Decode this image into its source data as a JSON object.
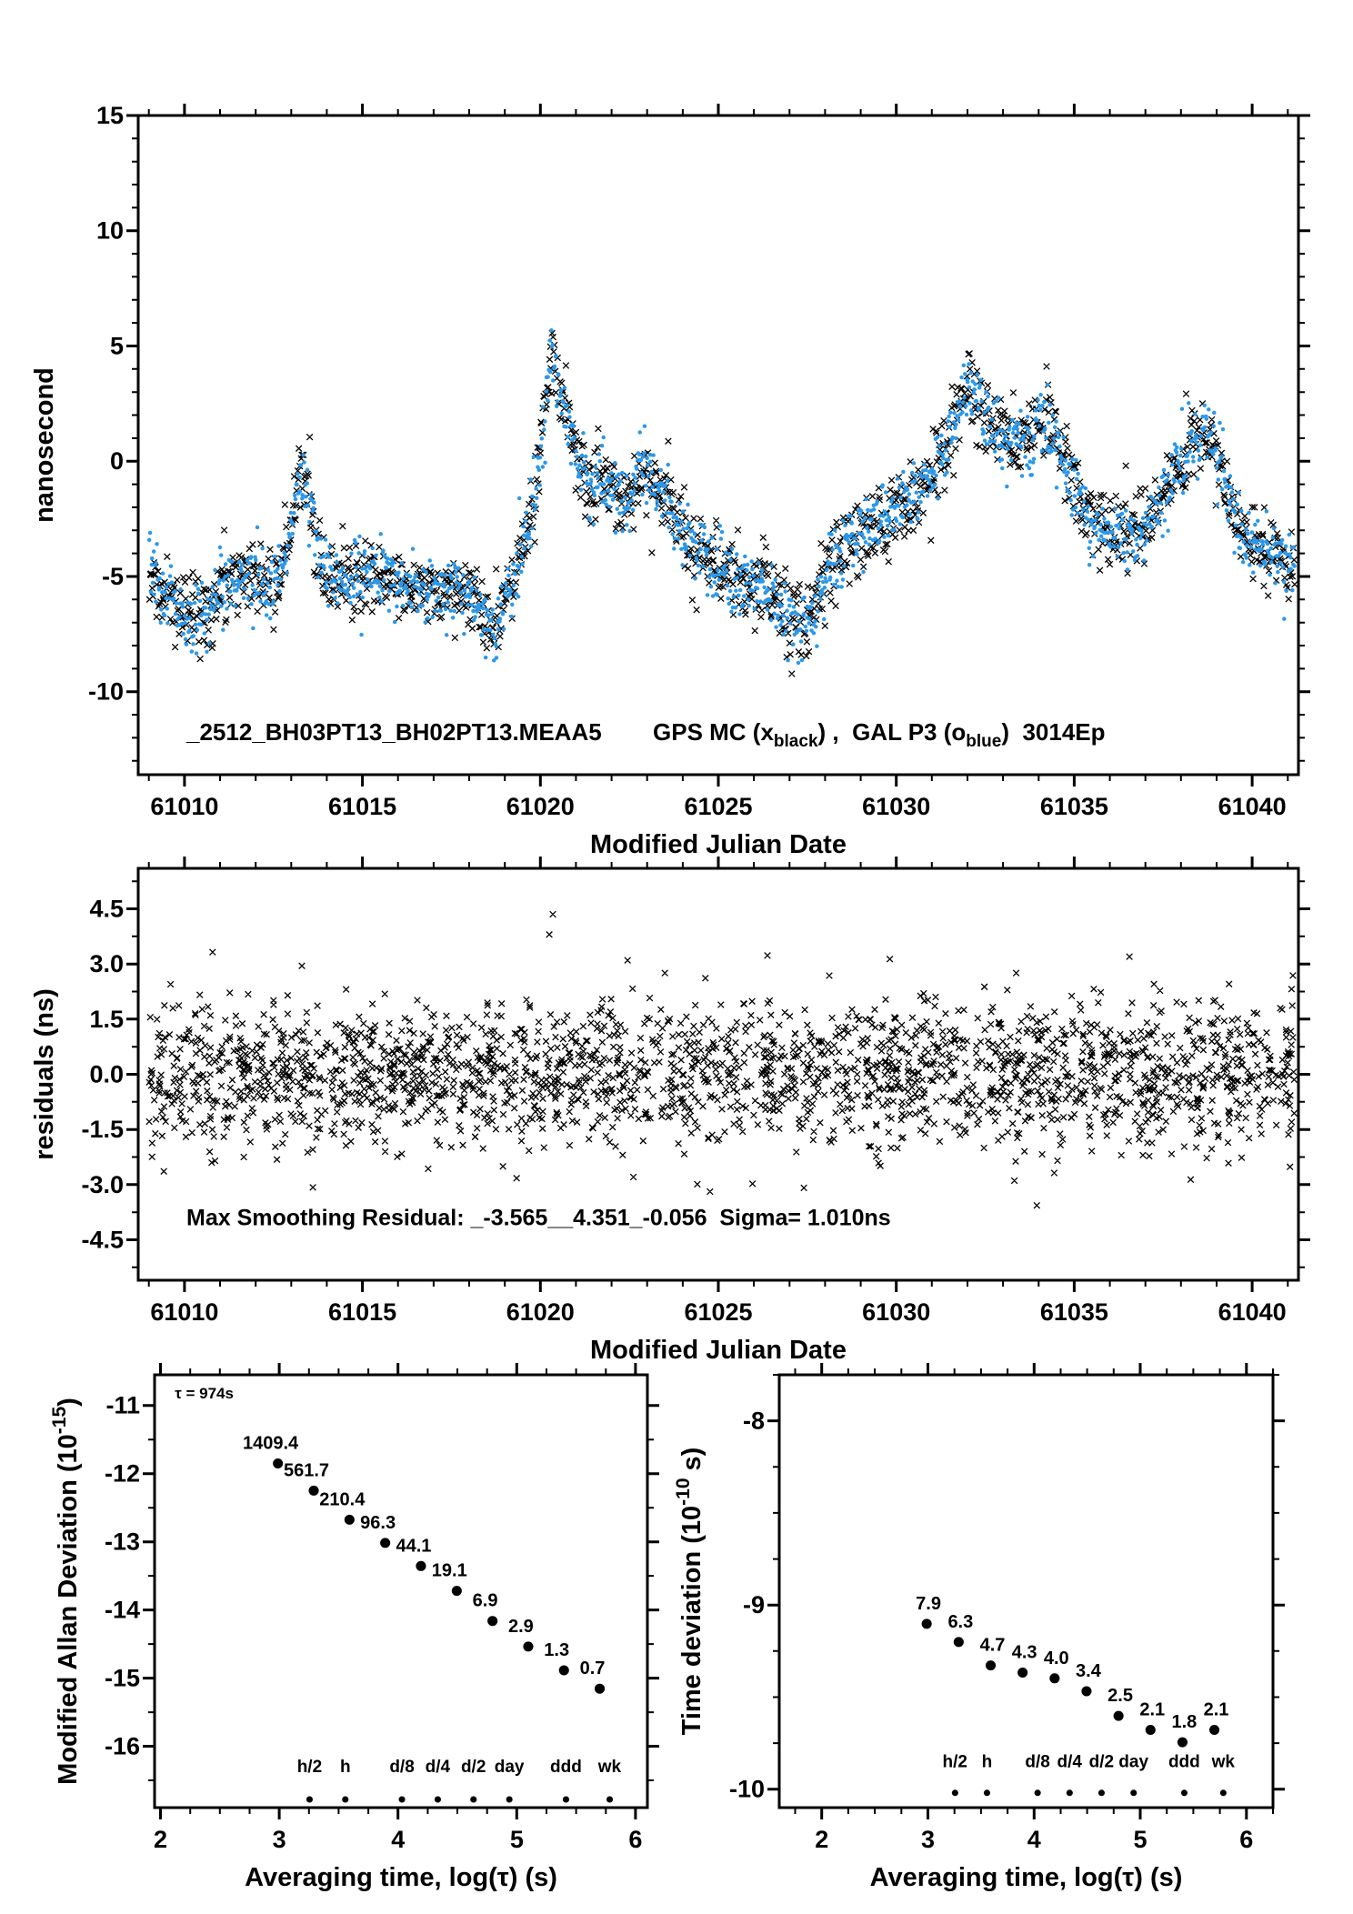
{
  "colors": {
    "black": "#000000",
    "blue": "#2b98ea",
    "red": "#e60000",
    "bg": "#ffffff"
  },
  "chart_data": [
    {
      "id": "gps-gal-scatter",
      "type": "scatter",
      "xlabel": "Modified Julian Date",
      "ylabel": "nanosecond",
      "xlim": [
        61008.7,
        61041.3
      ],
      "ylim": [
        -13.6,
        15
      ],
      "xticks": [
        61010,
        61015,
        61020,
        61025,
        61030,
        61035,
        61040
      ],
      "xtick_labels": [
        "61010",
        "61015",
        "61020",
        "61025",
        "61030",
        "61035",
        "61040"
      ],
      "yticks": [
        -10,
        -5,
        0,
        5,
        10,
        15
      ],
      "ytick_labels": [
        "-10",
        "-5",
        "0",
        "5",
        "10",
        "15"
      ],
      "x_minor_step": 1,
      "y_minor_step": 1,
      "annotation": {
        "file_id": "_2512_BH03PT13_BH02PT13.MEAA5",
        "series1_pre": "GPS MC (x",
        "series1_sub": "black",
        "series1_post": ") ,  ",
        "series2_pre": "GAL P3 (o",
        "series2_sub": "blue",
        "series2_post": ")  ",
        "epochs": "3014Ep"
      },
      "series": [
        {
          "name": "GPS MC",
          "marker": "x",
          "color": "#000000",
          "noise_sigma": 0.85,
          "n_points": 1600,
          "seed": 4001
        },
        {
          "name": "GAL P3",
          "marker": "dot",
          "color": "#2b98ea",
          "noise_sigma": 0.75,
          "n_points": 1600,
          "seed": 7003
        }
      ],
      "x_range_data": [
        61009.0,
        61041.2
      ],
      "trend": [
        [
          61009.0,
          -4.8
        ],
        [
          61009.4,
          -5.6
        ],
        [
          61009.8,
          -6.3
        ],
        [
          61010.2,
          -6.8
        ],
        [
          61010.6,
          -6.6
        ],
        [
          61011.0,
          -5.6
        ],
        [
          61011.4,
          -5.0
        ],
        [
          61011.8,
          -5.0
        ],
        [
          61012.2,
          -5.3
        ],
        [
          61012.6,
          -5.1
        ],
        [
          61012.9,
          -4.3
        ],
        [
          61013.1,
          -1.8
        ],
        [
          61013.3,
          -0.4
        ],
        [
          61013.5,
          -1.2
        ],
        [
          61013.7,
          -3.3
        ],
        [
          61014.0,
          -4.9
        ],
        [
          61014.4,
          -5.4
        ],
        [
          61014.8,
          -5.2
        ],
        [
          61015.2,
          -5.0
        ],
        [
          61015.6,
          -4.9
        ],
        [
          61016.0,
          -5.3
        ],
        [
          61016.4,
          -5.5
        ],
        [
          61016.8,
          -5.6
        ],
        [
          61017.2,
          -5.7
        ],
        [
          61017.6,
          -5.5
        ],
        [
          61018.0,
          -5.9
        ],
        [
          61018.4,
          -7.0
        ],
        [
          61018.6,
          -7.4
        ],
        [
          61018.9,
          -6.6
        ],
        [
          61019.2,
          -5.4
        ],
        [
          61019.5,
          -3.8
        ],
        [
          61019.8,
          -1.6
        ],
        [
          61020.1,
          1.5
        ],
        [
          61020.3,
          4.3
        ],
        [
          61020.5,
          3.4
        ],
        [
          61020.7,
          2.2
        ],
        [
          61020.9,
          1.0
        ],
        [
          61021.1,
          0.0
        ],
        [
          61021.4,
          -0.9
        ],
        [
          61021.7,
          -0.6
        ],
        [
          61022.0,
          -1.1
        ],
        [
          61022.3,
          -1.6
        ],
        [
          61022.6,
          -1.2
        ],
        [
          61022.9,
          -0.4
        ],
        [
          61023.2,
          -0.9
        ],
        [
          61023.5,
          -1.6
        ],
        [
          61023.8,
          -2.3
        ],
        [
          61024.1,
          -3.1
        ],
        [
          61024.5,
          -4.0
        ],
        [
          61024.9,
          -4.4
        ],
        [
          61025.3,
          -5.0
        ],
        [
          61025.7,
          -5.6
        ],
        [
          61026.1,
          -5.2
        ],
        [
          61026.5,
          -5.9
        ],
        [
          61026.9,
          -6.8
        ],
        [
          61027.2,
          -7.4
        ],
        [
          61027.5,
          -6.9
        ],
        [
          61027.8,
          -5.8
        ],
        [
          61028.1,
          -4.7
        ],
        [
          61028.5,
          -3.7
        ],
        [
          61028.9,
          -3.1
        ],
        [
          61029.3,
          -2.8
        ],
        [
          61029.7,
          -2.4
        ],
        [
          61030.1,
          -2.0
        ],
        [
          61030.5,
          -1.6
        ],
        [
          61030.9,
          -0.9
        ],
        [
          61031.3,
          0.5
        ],
        [
          61031.7,
          2.0
        ],
        [
          61032.0,
          3.2
        ],
        [
          61032.3,
          2.7
        ],
        [
          61032.6,
          1.8
        ],
        [
          61032.9,
          1.3
        ],
        [
          61033.3,
          1.1
        ],
        [
          61033.7,
          1.0
        ],
        [
          61034.0,
          1.7
        ],
        [
          61034.3,
          1.6
        ],
        [
          61034.6,
          0.6
        ],
        [
          61034.9,
          -0.6
        ],
        [
          61035.2,
          -1.8
        ],
        [
          61035.5,
          -2.7
        ],
        [
          61035.9,
          -3.1
        ],
        [
          61036.3,
          -3.4
        ],
        [
          61036.7,
          -3.3
        ],
        [
          61037.1,
          -2.7
        ],
        [
          61037.5,
          -1.6
        ],
        [
          61037.9,
          -0.3
        ],
        [
          61038.3,
          0.9
        ],
        [
          61038.6,
          1.3
        ],
        [
          61038.9,
          0.7
        ],
        [
          61039.2,
          -0.8
        ],
        [
          61039.5,
          -2.6
        ],
        [
          61039.8,
          -3.4
        ],
        [
          61040.2,
          -3.6
        ],
        [
          61040.6,
          -3.9
        ],
        [
          61041.0,
          -4.6
        ],
        [
          61041.3,
          -4.8
        ]
      ]
    },
    {
      "id": "residuals",
      "type": "scatter",
      "xlabel": "Modified Julian Date",
      "ylabel": "residuals (ns)",
      "xlim": [
        61008.7,
        61041.3
      ],
      "ylim": [
        -5.6,
        5.6
      ],
      "xticks": [
        61010,
        61015,
        61020,
        61025,
        61030,
        61035,
        61040
      ],
      "xtick_labels": [
        "61010",
        "61015",
        "61020",
        "61025",
        "61030",
        "61035",
        "61040"
      ],
      "yticks": [
        -4.5,
        -3,
        -1.5,
        0,
        1.5,
        3,
        4.5
      ],
      "ytick_labels": [
        "-4.5",
        "-3.0",
        "-1.5",
        "0.0",
        "1.5",
        "3.0",
        "4.5"
      ],
      "x_minor_step": 1,
      "y_minor_step": 0.75,
      "annotation": "Max Smoothing Residual: _-3.565__4.351_-0.056  Sigma= 1.010ns",
      "sigma_ns": 1.01,
      "n_points": 2300,
      "seed": 9091,
      "x_range_data": [
        61009.0,
        61041.2
      ],
      "outliers": [
        [
          61020.35,
          4.351
        ],
        [
          61033.95,
          -3.565
        ],
        [
          61036.55,
          3.2
        ],
        [
          61020.25,
          3.8
        ],
        [
          61013.3,
          2.95
        ],
        [
          61022.45,
          3.1
        ]
      ]
    },
    {
      "id": "mdev",
      "type": "scatter",
      "xlabel": "Averaging time, log(τ) (s)",
      "ylabel_pre": "Modified Allan Deviation (10",
      "ylabel_sup": "-15",
      "ylabel_post": ")",
      "xlim": [
        1.95,
        6.1
      ],
      "ylim": [
        -16.9,
        -10.55
      ],
      "xticks": [
        2,
        3,
        4,
        5,
        6
      ],
      "xtick_labels": [
        "2",
        "3",
        "4",
        "5",
        "6"
      ],
      "yticks": [
        -11,
        -12,
        -13,
        -14,
        -15,
        -16
      ],
      "ytick_labels": [
        "-11",
        "-12",
        "-13",
        "-14",
        "-15",
        "-16"
      ],
      "x_minor_step": 0.25,
      "y_minor_step": 0.5,
      "annotation": "τ = 974s",
      "x": [
        2.988,
        3.29,
        3.591,
        3.892,
        4.193,
        4.494,
        4.795,
        5.096,
        5.397,
        5.698
      ],
      "y": [
        -11.851,
        -12.25,
        -12.677,
        -13.016,
        -13.356,
        -13.719,
        -14.161,
        -14.538,
        -14.886,
        -15.155
      ],
      "value_labels": [
        "1409.4",
        "561.7",
        "210.4",
        "96.3",
        "44.1",
        "19.1",
        "6.9",
        "2.9",
        "1.3",
        "0.7"
      ],
      "time_markers": {
        "labels": [
          "h/2",
          "h",
          "d/8",
          "d/4",
          "d/2",
          "day",
          "ddd",
          "wk"
        ],
        "x": [
          3.255,
          3.556,
          4.033,
          4.334,
          4.635,
          4.937,
          5.414,
          5.782
        ],
        "label_y": -16.38,
        "dot_y": -16.78
      }
    },
    {
      "id": "tdev",
      "type": "scatter",
      "xlabel": "Averaging time, log(τ) (s)",
      "ylabel_pre": "Time deviation (10",
      "ylabel_sup": "-10",
      "ylabel_post": " s)",
      "xlim": [
        1.6,
        6.25
      ],
      "ylim": [
        -10.1,
        -7.75
      ],
      "xticks": [
        2,
        3,
        4,
        5,
        6
      ],
      "xtick_labels": [
        "2",
        "3",
        "4",
        "5",
        "6"
      ],
      "yticks": [
        -8,
        -9,
        -10
      ],
      "ytick_labels": [
        "-8",
        "-9",
        "-10"
      ],
      "x_minor_step": 0.25,
      "y_minor_step": 0.25,
      "x": [
        2.988,
        3.29,
        3.591,
        3.892,
        4.193,
        4.494,
        4.795,
        5.096,
        5.397,
        5.698
      ],
      "y": [
        -9.102,
        -9.201,
        -9.328,
        -9.367,
        -9.398,
        -9.468,
        -9.602,
        -9.678,
        -9.745,
        -9.678
      ],
      "value_labels": [
        "7.9",
        "6.3",
        "4.7",
        "4.3",
        "4.0",
        "3.4",
        "2.5",
        "2.1",
        "1.8",
        "2.1"
      ],
      "time_markers": {
        "labels": [
          "h/2",
          "h",
          "d/8",
          "d/4",
          "d/2",
          "day",
          "ddd",
          "wk"
        ],
        "x": [
          3.255,
          3.556,
          4.033,
          4.334,
          4.635,
          4.937,
          5.414,
          5.782
        ],
        "label_y": -9.88,
        "dot_y": -10.02
      }
    }
  ]
}
